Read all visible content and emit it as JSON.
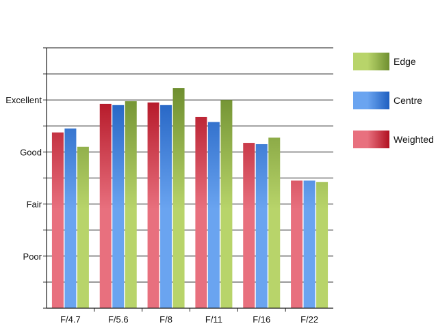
{
  "chart_data": {
    "type": "bar",
    "title": "",
    "xlabel": "",
    "ylabel": "",
    "categories": [
      "F/4.7",
      "F/5.6",
      "F/8",
      "F/11",
      "F/16",
      "F/22"
    ],
    "y_ticks": [
      {
        "label": "Poor",
        "value": 2
      },
      {
        "label": "Fair",
        "value": 4
      },
      {
        "label": "Good",
        "value": 6
      },
      {
        "label": "Excellent",
        "value": 8
      }
    ],
    "ylim": [
      0,
      10
    ],
    "grid": true,
    "legend_position": "right",
    "series": [
      {
        "name": "Weighted",
        "values": [
          6.75,
          7.85,
          7.9,
          7.35,
          6.35,
          4.9
        ],
        "color_light": "#e8707e",
        "color_dark": "#b01020"
      },
      {
        "name": "Centre",
        "values": [
          6.9,
          7.8,
          7.8,
          7.15,
          6.3,
          4.9
        ],
        "color_light": "#6aa4f0",
        "color_dark": "#1f5fc0"
      },
      {
        "name": "Edge",
        "values": [
          6.2,
          7.95,
          8.45,
          8.0,
          6.55,
          4.85
        ],
        "color_light": "#b8d46a",
        "color_dark": "#6f8f30"
      }
    ],
    "legend_order": [
      "Edge",
      "Centre",
      "Weighted"
    ]
  }
}
